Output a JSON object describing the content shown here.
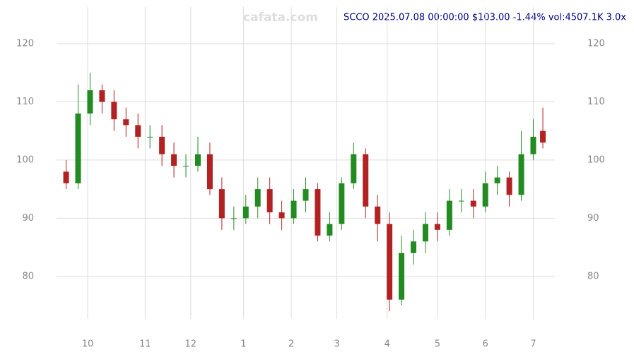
{
  "chart_data": {
    "type": "candlestick",
    "title": "SCCO 2025.07.08 00:00:00 $103.00 -1.44% vol:4507.1K 3.0x",
    "watermark": "cafata.com",
    "x": [
      0,
      5,
      10,
      15,
      20,
      25,
      30,
      35,
      40,
      45,
      50,
      55,
      60,
      65,
      70,
      75,
      80,
      85,
      90,
      95,
      100,
      105,
      110,
      115,
      120,
      125,
      130,
      135,
      140,
      145,
      150,
      155,
      160,
      165,
      170,
      175,
      180,
      185,
      190,
      195,
      199
    ],
    "open": [
      98,
      96,
      108,
      112,
      110,
      107,
      106,
      104,
      104,
      101,
      99,
      99,
      101,
      95,
      90,
      90,
      92,
      95,
      91,
      90,
      93,
      95,
      87,
      89,
      96,
      101,
      92,
      89,
      76,
      84,
      86,
      89,
      88,
      93,
      93,
      92,
      96,
      97,
      94,
      101,
      105
    ],
    "close": [
      96,
      108,
      112,
      110,
      107,
      106,
      104,
      104,
      101,
      99,
      99,
      101,
      95,
      90,
      90,
      92,
      95,
      91,
      90,
      93,
      95,
      87,
      89,
      96,
      101,
      92,
      89,
      76,
      84,
      86,
      89,
      88,
      93,
      93,
      92,
      96,
      97,
      94,
      101,
      104,
      103
    ],
    "high": [
      100,
      113,
      115,
      113,
      112,
      109,
      108,
      106,
      106,
      103,
      101,
      104,
      103,
      97,
      92,
      94,
      97,
      97,
      93,
      95,
      97,
      96,
      91,
      97,
      103,
      102,
      94,
      91,
      87,
      88,
      91,
      91,
      95,
      95,
      95,
      98,
      99,
      98,
      105,
      107,
      109
    ],
    "low": [
      95,
      95,
      106,
      108,
      105,
      104,
      102,
      102,
      99,
      97,
      97,
      98,
      94,
      88,
      88,
      89,
      90,
      89,
      88,
      89,
      91,
      86,
      86,
      88,
      95,
      90,
      86,
      74,
      75,
      82,
      84,
      86,
      87,
      91,
      90,
      91,
      94,
      92,
      93,
      100,
      102
    ],
    "up_color": "#228b22",
    "down_color": "#b22222",
    "xlim": [
      -4,
      204
    ],
    "xticks": [
      {
        "value": 9,
        "label": "10"
      },
      {
        "value": 33,
        "label": "11"
      },
      {
        "value": 52,
        "label": "12"
      },
      {
        "value": 74,
        "label": "1"
      },
      {
        "value": 94,
        "label": "2"
      },
      {
        "value": 113,
        "label": "3"
      },
      {
        "value": 134,
        "label": "4"
      },
      {
        "value": 155,
        "label": "5"
      },
      {
        "value": 175,
        "label": "6"
      },
      {
        "value": 195,
        "label": "7"
      }
    ],
    "ylim": [
      72.7,
      126.3
    ],
    "yticks": [
      80,
      90,
      100,
      110,
      120
    ],
    "grid": true
  }
}
